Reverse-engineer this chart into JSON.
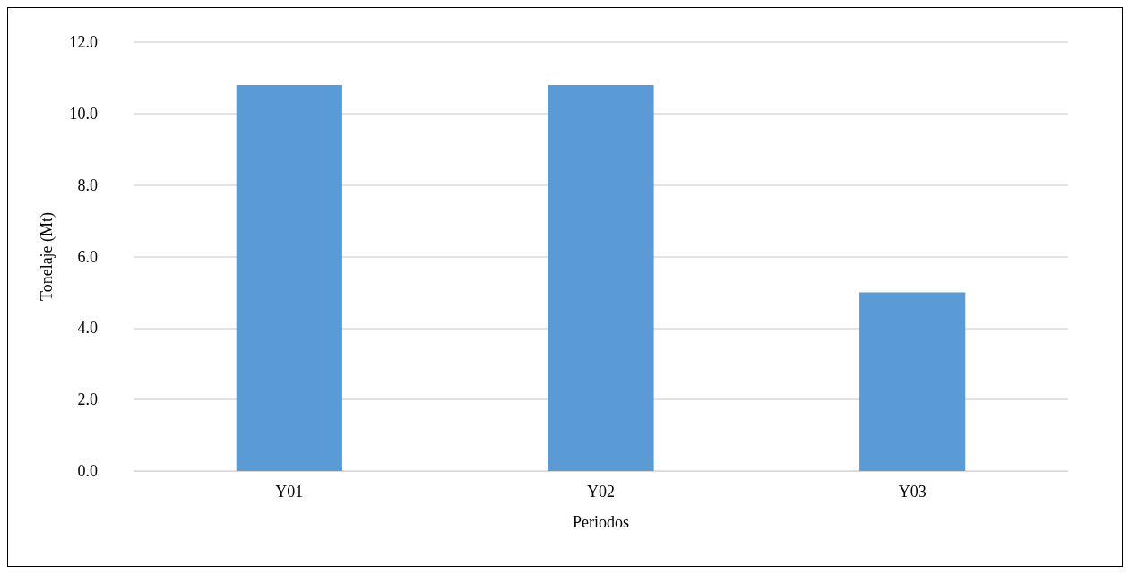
{
  "chart_data": {
    "type": "bar",
    "xlabel": "Periodos",
    "ylabel": "Tonelaje (Mt)",
    "categories": [
      "Y01",
      "Y02",
      "Y03"
    ],
    "values": [
      10.8,
      10.8,
      5.0
    ],
    "color": "#5b9bd5",
    "ylim": [
      0,
      12
    ],
    "yticks": [
      {
        "value": 0,
        "label": "0.0"
      },
      {
        "value": 2,
        "label": "2.0"
      },
      {
        "value": 4,
        "label": "4.0"
      },
      {
        "value": 6,
        "label": "6.0"
      },
      {
        "value": 8,
        "label": "8.0"
      },
      {
        "value": 10,
        "label": "10.0"
      },
      {
        "value": 12,
        "label": "12.0"
      }
    ],
    "grid": "y"
  }
}
